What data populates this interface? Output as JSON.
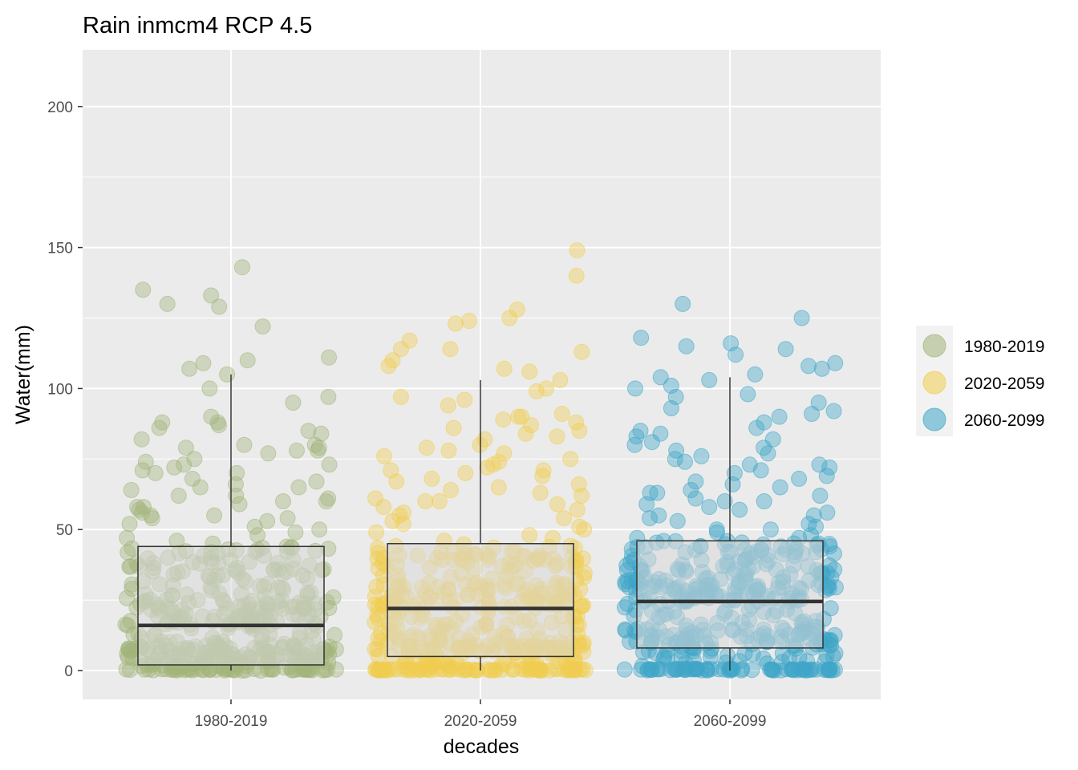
{
  "chart_data": {
    "type": "box",
    "title": "Rain inmcm4 RCP 4.5",
    "xlabel": "decades",
    "ylabel": "Water(mm)",
    "ylim": [
      -10,
      220
    ],
    "yticks": [
      0,
      50,
      100,
      150,
      200
    ],
    "categories": [
      "1980-2019",
      "2020-2059",
      "2060-2099"
    ],
    "grid": true,
    "legend": {
      "placement": "right",
      "entries": [
        "1980-2019",
        "2020-2059",
        "2060-2099"
      ]
    },
    "colors": {
      "1980-2019": "#a2b47a",
      "2020-2059": "#f0cd4f",
      "2060-2099": "#3ea6c8",
      "panel_background": "#ebebeb",
      "grid": "#ffffff",
      "box_fill": "#d9d9d9",
      "box_line": "#333333"
    },
    "boxes": [
      {
        "category": "1980-2019",
        "min": 0,
        "q1": 2,
        "median": 16,
        "q3": 44,
        "max": 105
      },
      {
        "category": "2020-2059",
        "min": 0,
        "q1": 5,
        "median": 22,
        "q3": 45,
        "max": 103
      },
      {
        "category": "2060-2099",
        "min": 0,
        "q1": 8,
        "median": 24.5,
        "q3": 46,
        "max": 104
      }
    ],
    "points": {
      "1980-2019": {
        "outliers": [
          143,
          135,
          133,
          130,
          129,
          122,
          111,
          110,
          109,
          107,
          105,
          100,
          97,
          95,
          90,
          88,
          88,
          87,
          86,
          85,
          84,
          82,
          80,
          80,
          79,
          79,
          78,
          78,
          77,
          75,
          74,
          73,
          73,
          72,
          71,
          70,
          70,
          68,
          67,
          66,
          65,
          65,
          64,
          62,
          62,
          61,
          60,
          60,
          59,
          58,
          58,
          57,
          56,
          55,
          55,
          54,
          54,
          53,
          52,
          51,
          50,
          49,
          48,
          47,
          46,
          45
        ],
        "zero_count": 55,
        "bulk_count": 330,
        "bulk_range": [
          1,
          44
        ]
      },
      "2020-2059": {
        "outliers": [
          149,
          140,
          128,
          125,
          124,
          123,
          117,
          114,
          114,
          113,
          110,
          108,
          107,
          106,
          103,
          100,
          99,
          97,
          96,
          94,
          91,
          90,
          90,
          89,
          88,
          87,
          86,
          85,
          84,
          83,
          82,
          80,
          79,
          78,
          77,
          76,
          75,
          74,
          73,
          72,
          71,
          71,
          70,
          69,
          68,
          67,
          66,
          65,
          64,
          63,
          62,
          61,
          60,
          60,
          59,
          58,
          57,
          56,
          55,
          54,
          53,
          52,
          51,
          50,
          49,
          48,
          47,
          46
        ],
        "zero_count": 75,
        "bulk_count": 320,
        "bulk_range": [
          1,
          45
        ]
      },
      "2060-2099": {
        "outliers": [
          130,
          125,
          118,
          116,
          115,
          114,
          112,
          109,
          108,
          107,
          105,
          104,
          103,
          101,
          100,
          98,
          97,
          95,
          93,
          92,
          91,
          90,
          88,
          86,
          85,
          84,
          83,
          82,
          81,
          80,
          79,
          78,
          77,
          76,
          75,
          74,
          73,
          73,
          72,
          71,
          70,
          69,
          68,
          67,
          66,
          65,
          64,
          63,
          63,
          62,
          61,
          60,
          60,
          59,
          58,
          57,
          56,
          55,
          55,
          54,
          53,
          52,
          51,
          50,
          50,
          49,
          48,
          47,
          47
        ],
        "zero_count": 70,
        "bulk_count": 330,
        "bulk_range": [
          1,
          46
        ]
      }
    }
  }
}
